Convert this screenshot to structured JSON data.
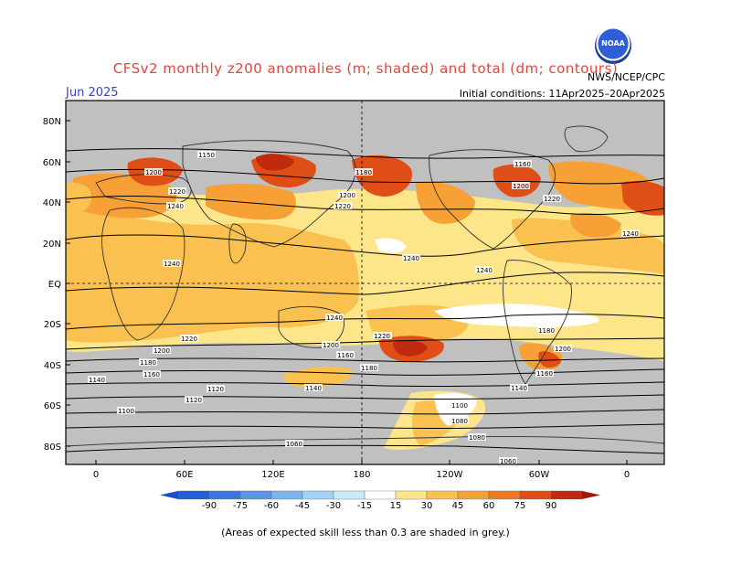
{
  "title": "CFSv2 monthly z200 anomalies (m; shaded) and total (dm; contours)",
  "month": "Jun 2025",
  "initial_conditions": "Initial conditions: 11Apr2025–20Apr2025",
  "source": "NWS/NCEP/CPC",
  "logo_text": "NOAA",
  "lat_labels": [
    "80N",
    "60N",
    "40N",
    "20N",
    "EQ",
    "20S",
    "40S",
    "60S",
    "80S"
  ],
  "lon_labels": [
    "0",
    "60E",
    "120E",
    "180",
    "120W",
    "60W",
    "0"
  ],
  "colorbar": {
    "ticks": [
      "-90",
      "-75",
      "-60",
      "-45",
      "-30",
      "-15",
      "15",
      "30",
      "45",
      "60",
      "75",
      "90"
    ],
    "colors": [
      "#2260d8",
      "#3a78e0",
      "#5a96ea",
      "#7cb4f0",
      "#a2d2f6",
      "#c8eafa",
      "#ffffff",
      "#fde68a",
      "#fbc150",
      "#f7a035",
      "#f07a22",
      "#e04e18",
      "#c02a10"
    ]
  },
  "contour_labels": [
    "1150",
    "1200",
    "1220",
    "1240",
    "1180",
    "1200",
    "1220",
    "1160",
    "1200",
    "1220",
    "1240",
    "1240",
    "1240",
    "1240",
    "1240",
    "1220",
    "1220",
    "1200",
    "1180",
    "1160",
    "1180",
    "1200",
    "1220",
    "1160",
    "1140",
    "1200",
    "1180",
    "1160",
    "1140",
    "1120",
    "1100",
    "1080",
    "1140",
    "1120",
    "1100",
    "1060",
    "1060",
    "1080"
  ],
  "caption": "(Areas of expected skill less than 0.3 are shaded in grey.)"
}
